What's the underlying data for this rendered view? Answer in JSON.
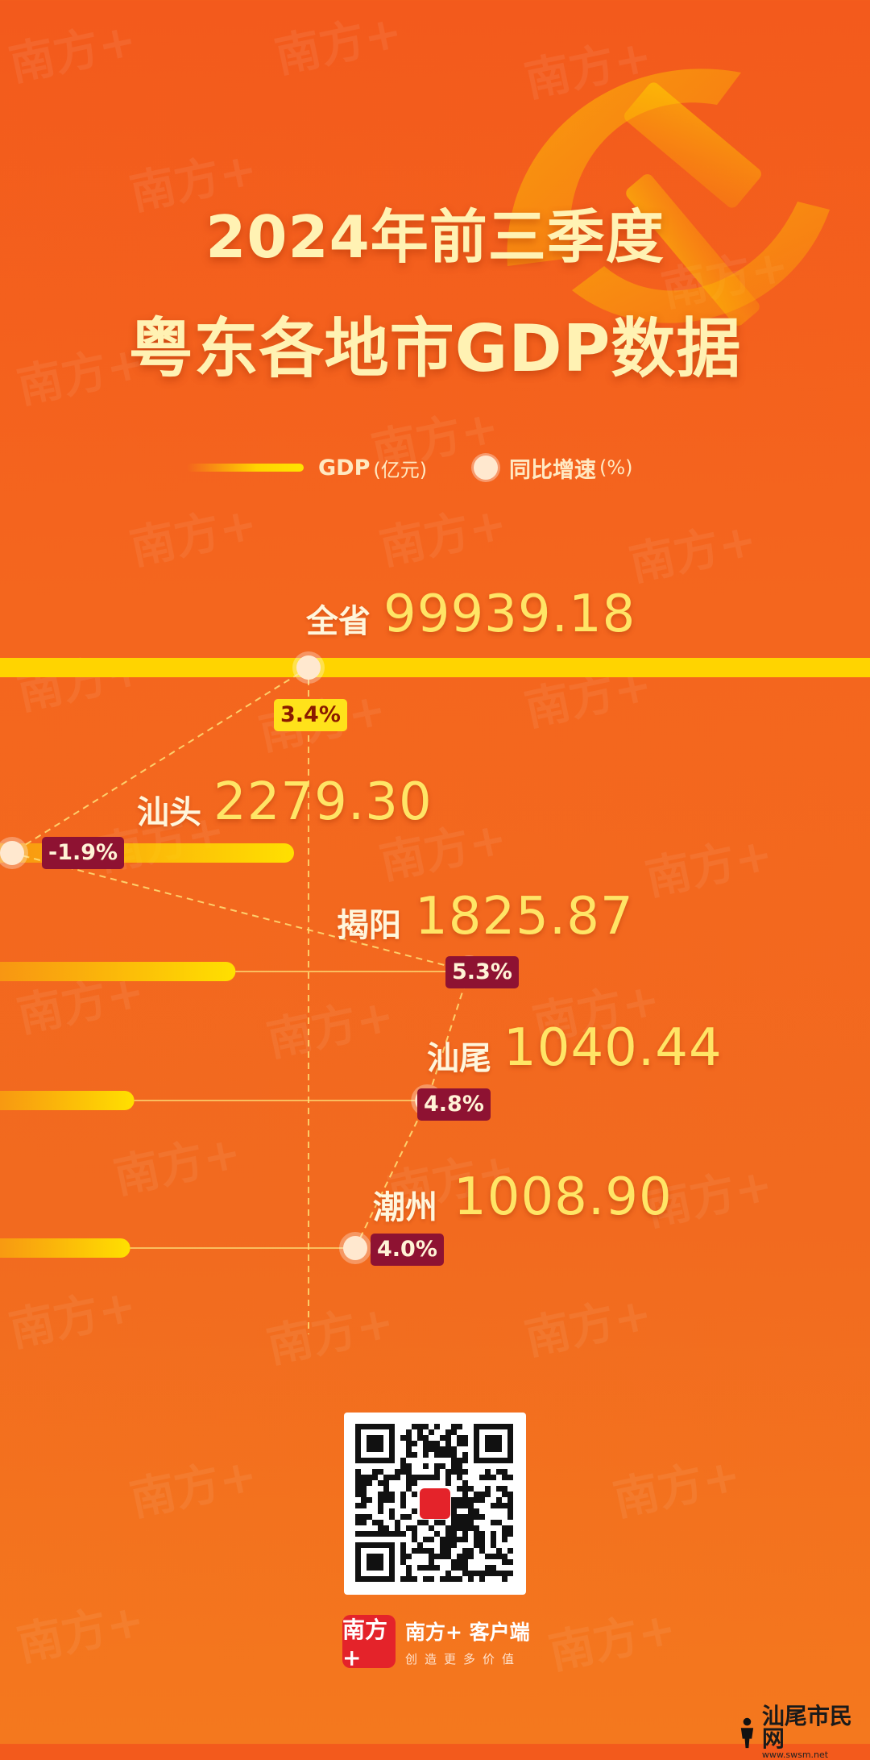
{
  "title": {
    "line1": "2024年前三季度",
    "line2": "粤东各地市GDP数据"
  },
  "legend": {
    "gdp_label": "GDP",
    "gdp_unit": "(亿元)",
    "growth_label": "同比增速",
    "growth_unit": "(%)"
  },
  "chart_data": {
    "type": "bar",
    "title": "2024年前三季度 粤东各地市GDP数据",
    "categories": [
      "全省",
      "汕头",
      "揭阳",
      "汕尾",
      "潮州"
    ],
    "series": [
      {
        "name": "GDP",
        "unit": "亿元",
        "values": [
          99939.18,
          2279.3,
          1825.87,
          1040.44,
          1008.9
        ]
      },
      {
        "name": "同比增速",
        "unit": "%",
        "values": [
          3.4,
          -1.9,
          5.3,
          4.8,
          4.0
        ]
      }
    ],
    "value_labels": [
      "99939.18",
      "2279.30",
      "1825.87",
      "1040.44",
      "1008.90"
    ],
    "growth_labels": [
      "3.4",
      "-1.9",
      "5.3",
      "4.8",
      "4.0"
    ],
    "growth_suffix": "%",
    "colors": {
      "bar": "#ffd400",
      "dot": "#ffe8cf",
      "tag": "#8e1232",
      "tag_highlight": "#ffe21a",
      "line": "#ffe27a"
    }
  },
  "watermark": "南方+",
  "brand": {
    "logo_text": "南方+",
    "name": "南方+ 客户端",
    "slogan": "创造更多价值"
  },
  "site": {
    "name": "汕尾市民网",
    "url": "www.swsm.net"
  }
}
